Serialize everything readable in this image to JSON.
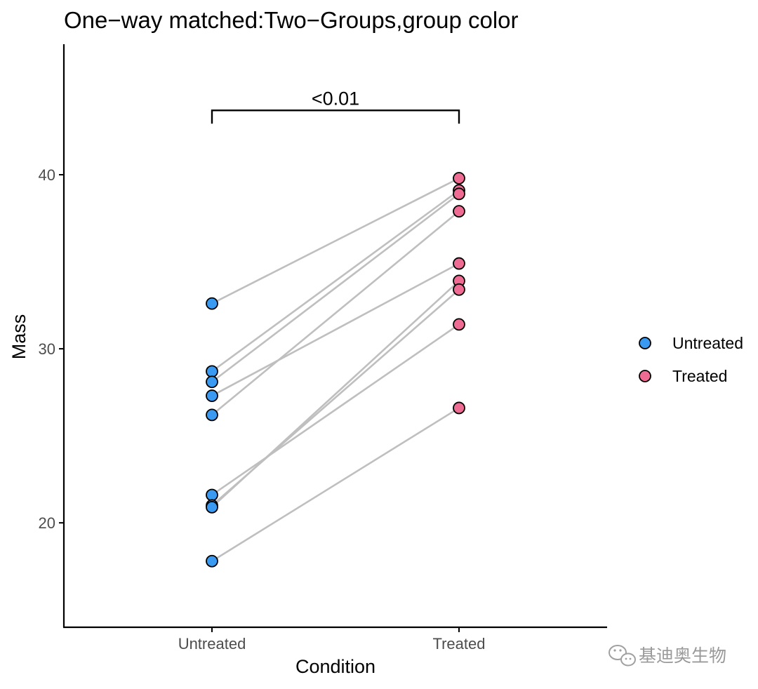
{
  "chart_data": {
    "type": "scatter",
    "title": "One−way matched:Two−Groups,group color",
    "xlabel": "Condition",
    "ylabel": "Mass",
    "categories": [
      "Untreated",
      "Treated"
    ],
    "ylim": [
      14,
      47.5
    ],
    "yticks": [
      20,
      30,
      40
    ],
    "grid": false,
    "legend_position": "right",
    "series": [
      {
        "name": "Untreated",
        "color": "#3a99f0",
        "values": [
          32.6,
          28.7,
          28.1,
          27.3,
          26.2,
          21.6,
          21.0,
          20.9,
          17.8
        ]
      },
      {
        "name": "Treated",
        "color": "#ee6b94",
        "values": [
          39.8,
          39.1,
          38.9,
          37.9,
          34.9,
          33.9,
          33.4,
          31.4,
          26.6
        ]
      }
    ],
    "pairs": [
      [
        32.6,
        39.8
      ],
      [
        28.7,
        39.1
      ],
      [
        28.1,
        38.9
      ],
      [
        27.3,
        34.9
      ],
      [
        26.2,
        37.9
      ],
      [
        21.6,
        31.4
      ],
      [
        21.0,
        33.4
      ],
      [
        20.9,
        33.9
      ],
      [
        17.8,
        26.6
      ]
    ],
    "line_color": "#bfbfbf",
    "annotations": [
      {
        "text": "<0.01",
        "between": [
          "Untreated",
          "Treated"
        ],
        "y": 43.7
      }
    ]
  },
  "watermark": {
    "text": "基迪奥生物",
    "icon": "wechat-icon"
  }
}
